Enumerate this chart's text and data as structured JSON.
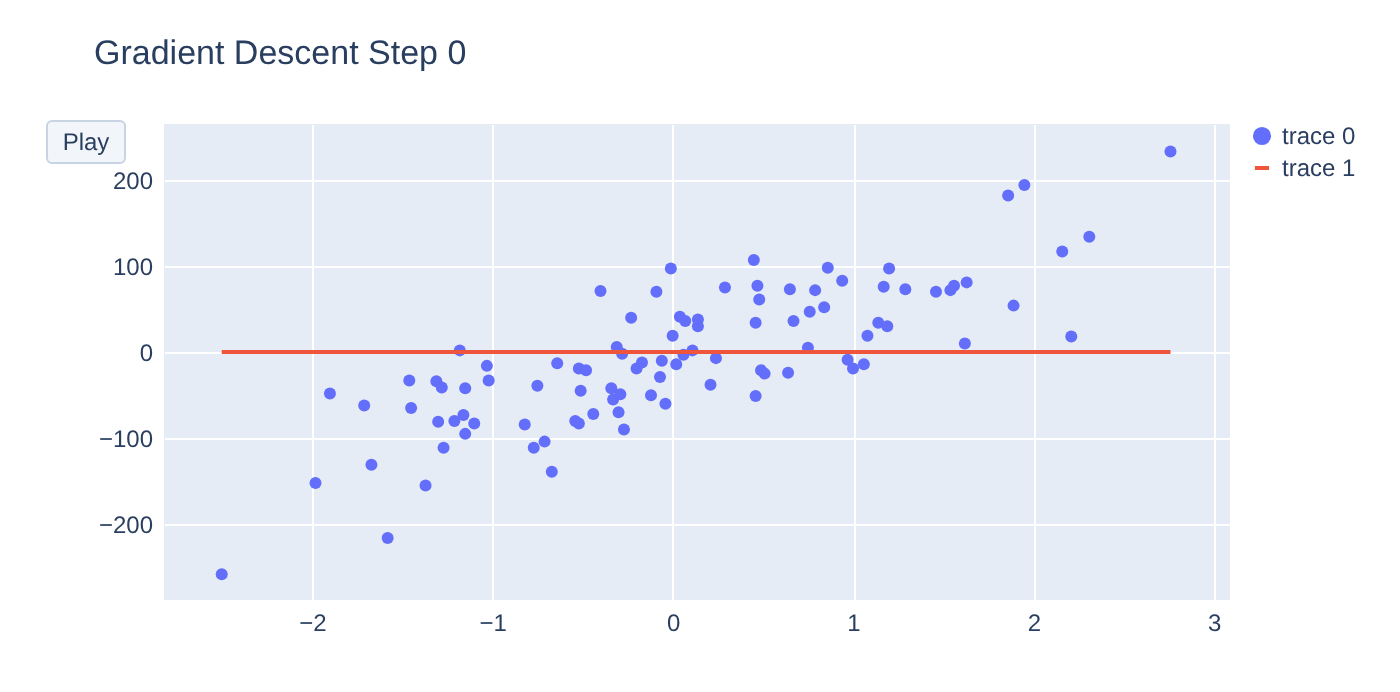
{
  "chart_data": {
    "type": "scatter",
    "title": "Gradient Descent Step 0",
    "annotations": [
      "Play"
    ],
    "xlim": [
      -2.82,
      3.09
    ],
    "xticks": [
      -2,
      -1,
      0,
      1,
      2,
      3
    ],
    "ylim": [
      -288,
      265
    ],
    "yticks": [
      -200,
      -100,
      0,
      100,
      200
    ],
    "grid": true,
    "legend": "top right",
    "series": [
      {
        "name": "trace 0",
        "color": "#636efa",
        "x": [
          -2.5,
          -1.98,
          -1.9,
          -1.71,
          -1.67,
          -1.58,
          -1.46,
          -1.45,
          -1.37,
          -1.31,
          -1.3,
          -1.28,
          -1.27,
          -1.21,
          -1.18,
          -1.16,
          -1.15,
          -1.15,
          -1.1,
          -1.03,
          -1.02,
          -0.82,
          -0.77,
          -0.75,
          -0.71,
          -0.67,
          -0.64,
          -0.52,
          -0.48,
          -0.51,
          -0.54,
          -0.52,
          -0.44,
          -0.4,
          -0.34,
          -0.33,
          -0.31,
          -0.3,
          -0.29,
          -0.28,
          -0.27,
          -0.23,
          -0.2,
          -0.17,
          -0.12,
          -0.09,
          -0.07,
          -0.06,
          -0.04,
          -0.01,
          0.0,
          0.02,
          0.04,
          0.07,
          0.06,
          0.11,
          0.14,
          0.14,
          0.21,
          0.24,
          0.29,
          0.45,
          0.46,
          0.46,
          0.47,
          0.48,
          0.49,
          0.51,
          0.64,
          0.65,
          0.67,
          0.75,
          0.76,
          0.79,
          0.84,
          0.86,
          0.94,
          0.97,
          1.0,
          1.06,
          1.08,
          1.14,
          1.17,
          1.19,
          1.2,
          1.29,
          1.46,
          1.54,
          1.56,
          1.63,
          1.62,
          1.86,
          1.95,
          1.89,
          2.16,
          2.31,
          2.21,
          2.76
        ],
        "values": [
          -258,
          -152,
          -48,
          -62,
          -131,
          -216,
          -33,
          -65,
          -155,
          -34,
          -81,
          -41,
          -111,
          -80,
          2,
          -73,
          -42,
          -95,
          -83,
          -16,
          -33,
          -84,
          -111,
          -39,
          -104,
          -139,
          -13,
          -19,
          -21,
          -45,
          -80,
          -83,
          -72,
          71,
          -42,
          -55,
          6,
          -70,
          -49,
          -2,
          -90,
          40,
          -19,
          -12,
          -50,
          70,
          -29,
          -10,
          -60,
          97,
          19,
          -14,
          41,
          36,
          -3,
          2,
          38,
          30,
          -38,
          -7,
          75,
          107,
          34,
          -51,
          77,
          61,
          -21,
          -25,
          -24,
          73,
          36,
          5,
          47,
          72,
          52,
          98,
          83,
          -9,
          -19,
          -14,
          19,
          34,
          76,
          30,
          97,
          73,
          70,
          72,
          77,
          81,
          10,
          182,
          194,
          54,
          117,
          134,
          18,
          233
        ]
      },
      {
        "name": "trace 1",
        "color": "#ef553b",
        "type": "line",
        "x": [
          -2.5,
          2.76
        ],
        "values": [
          0,
          0
        ]
      }
    ]
  }
}
